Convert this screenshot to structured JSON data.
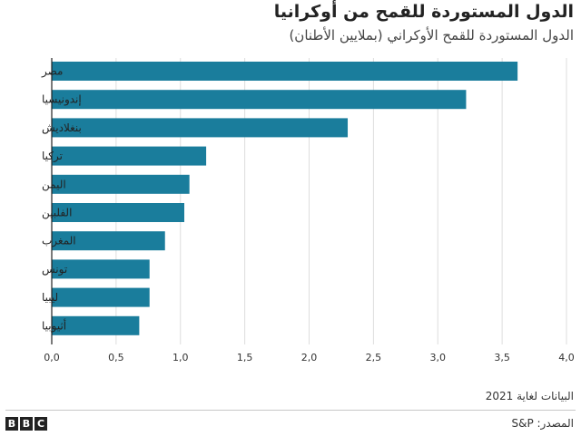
{
  "chart_data": {
    "type": "bar",
    "orientation": "horizontal",
    "title": "الدول المستوردة للقمح من أوكرانيا",
    "subtitle": "الدول المستوردة للقمح الأوكراني (بملايين الأطنان)",
    "categories": [
      "مصر",
      "إندونيسيا",
      "بنغلاديش",
      "تركيا",
      "اليمن",
      "الفلبين",
      "المغرب",
      "تونس",
      "ليبيا",
      "أثيوبيا"
    ],
    "values": [
      3.62,
      3.22,
      2.3,
      1.2,
      1.07,
      1.03,
      0.88,
      0.76,
      0.76,
      0.68
    ],
    "xlim": [
      0,
      4
    ],
    "x_ticks": [
      0,
      0.5,
      1,
      1.5,
      2,
      2.5,
      3,
      3.5,
      4
    ],
    "x_tick_labels": [
      "0,0",
      "0,5",
      "1,0",
      "1,5",
      "2,0",
      "2,5",
      "3,0",
      "3,5",
      "4,0"
    ],
    "bar_color": "#1a7d9c",
    "grid": true
  },
  "footer": {
    "note": "البيانات لغاية 2021",
    "source": "المصدر: S&P",
    "logo_letters": [
      "B",
      "B",
      "C"
    ]
  }
}
